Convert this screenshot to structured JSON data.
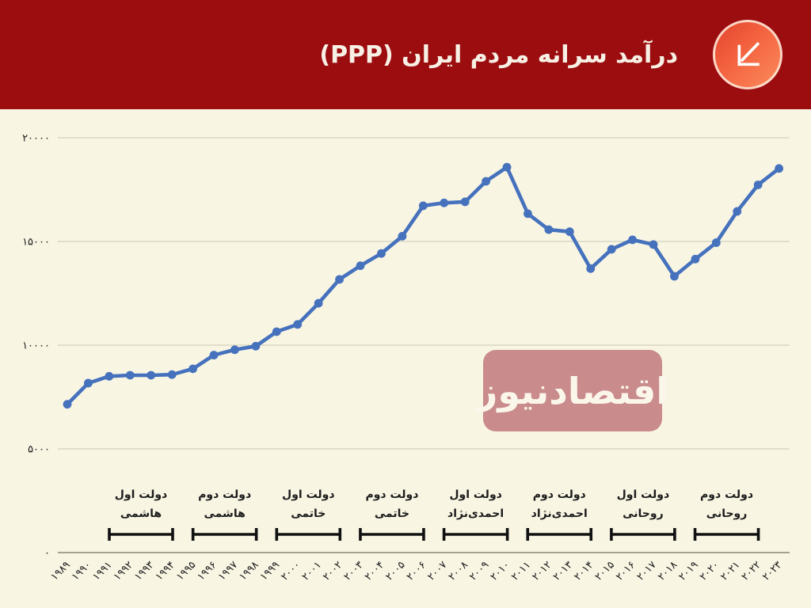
{
  "header": {
    "title": "درآمد سرانه مردم ایران (PPP)",
    "icon": "trend-arrow-down-left-icon"
  },
  "watermark": {
    "text": "اقتصادنیوز"
  },
  "colors": {
    "header_bg": "#9C0D10",
    "page_bg": "#F8F5E3",
    "line": "#4571BD",
    "grid": "#C9C6B4",
    "axis": "#8A8778",
    "text": "#1C1C1C",
    "watermark_bg": "#C98B8C"
  },
  "chart_data": {
    "type": "line",
    "title": "درآمد سرانه مردم ایران (PPP)",
    "x": [
      1989,
      1990,
      1991,
      1992,
      1993,
      1994,
      1995,
      1996,
      1997,
      1998,
      1999,
      2000,
      2001,
      2002,
      2003,
      2004,
      2005,
      2006,
      2007,
      2008,
      2009,
      2010,
      2011,
      2012,
      2013,
      2014,
      2015,
      2016,
      2017,
      2018,
      2019,
      2020,
      2021,
      2022,
      2023
    ],
    "x_labels": [
      "۱۹۸۹",
      "۱۹۹۰",
      "۱۹۹۱",
      "۱۹۹۲",
      "۱۹۹۳",
      "۱۹۹۴",
      "۱۹۹۵",
      "۱۹۹۶",
      "۱۹۹۷",
      "۱۹۹۸",
      "۱۹۹۹",
      "۲۰۰۰",
      "۲۰۰۱",
      "۲۰۰۲",
      "۲۰۰۳",
      "۲۰۰۴",
      "۲۰۰۵",
      "۲۰۰۶",
      "۲۰۰۷",
      "۲۰۰۸",
      "۲۰۰۹",
      "۲۰۱۰",
      "۲۰۱۱",
      "۲۰۱۲",
      "۲۰۱۳",
      "۲۰۱۴",
      "۲۰۱۵",
      "۲۰۱۶",
      "۲۰۱۷",
      "۲۰۱۸",
      "۲۰۱۹",
      "۲۰۲۰",
      "۲۰۲۱",
      "۲۰۲۲",
      "۲۰۲۳"
    ],
    "values": [
      7150,
      8170,
      8500,
      8550,
      8550,
      8580,
      8860,
      9520,
      9780,
      9950,
      10650,
      11000,
      12020,
      13170,
      13830,
      14420,
      15250,
      16720,
      16860,
      16910,
      17900,
      18580,
      16340,
      15570,
      15470,
      13690,
      14620,
      15080,
      14850,
      13320,
      14150,
      14940,
      16450,
      17730,
      18520
    ],
    "yticks": [
      0,
      5000,
      10000,
      15000,
      20000
    ],
    "ytick_labels": [
      "۰",
      "۵۰۰۰",
      "۱۰۰۰۰",
      "۱۵۰۰۰",
      "۲۰۰۰۰"
    ],
    "ylim": [
      0,
      21000
    ],
    "grid": true,
    "legend": "none",
    "periods": [
      {
        "line1": "دولت اول",
        "line2": "هاشمی"
      },
      {
        "line1": "دولت دوم",
        "line2": "هاشمی"
      },
      {
        "line1": "دولت اول",
        "line2": "خاتمی"
      },
      {
        "line1": "دولت دوم",
        "line2": "خاتمی"
      },
      {
        "line1": "دولت اول",
        "line2": "احمدی‌نژاد"
      },
      {
        "line1": "دولت دوم",
        "line2": "احمدی‌نژاد"
      },
      {
        "line1": "دولت اول",
        "line2": "روحانی"
      },
      {
        "line1": "دولت دوم",
        "line2": "روحانی"
      }
    ]
  }
}
